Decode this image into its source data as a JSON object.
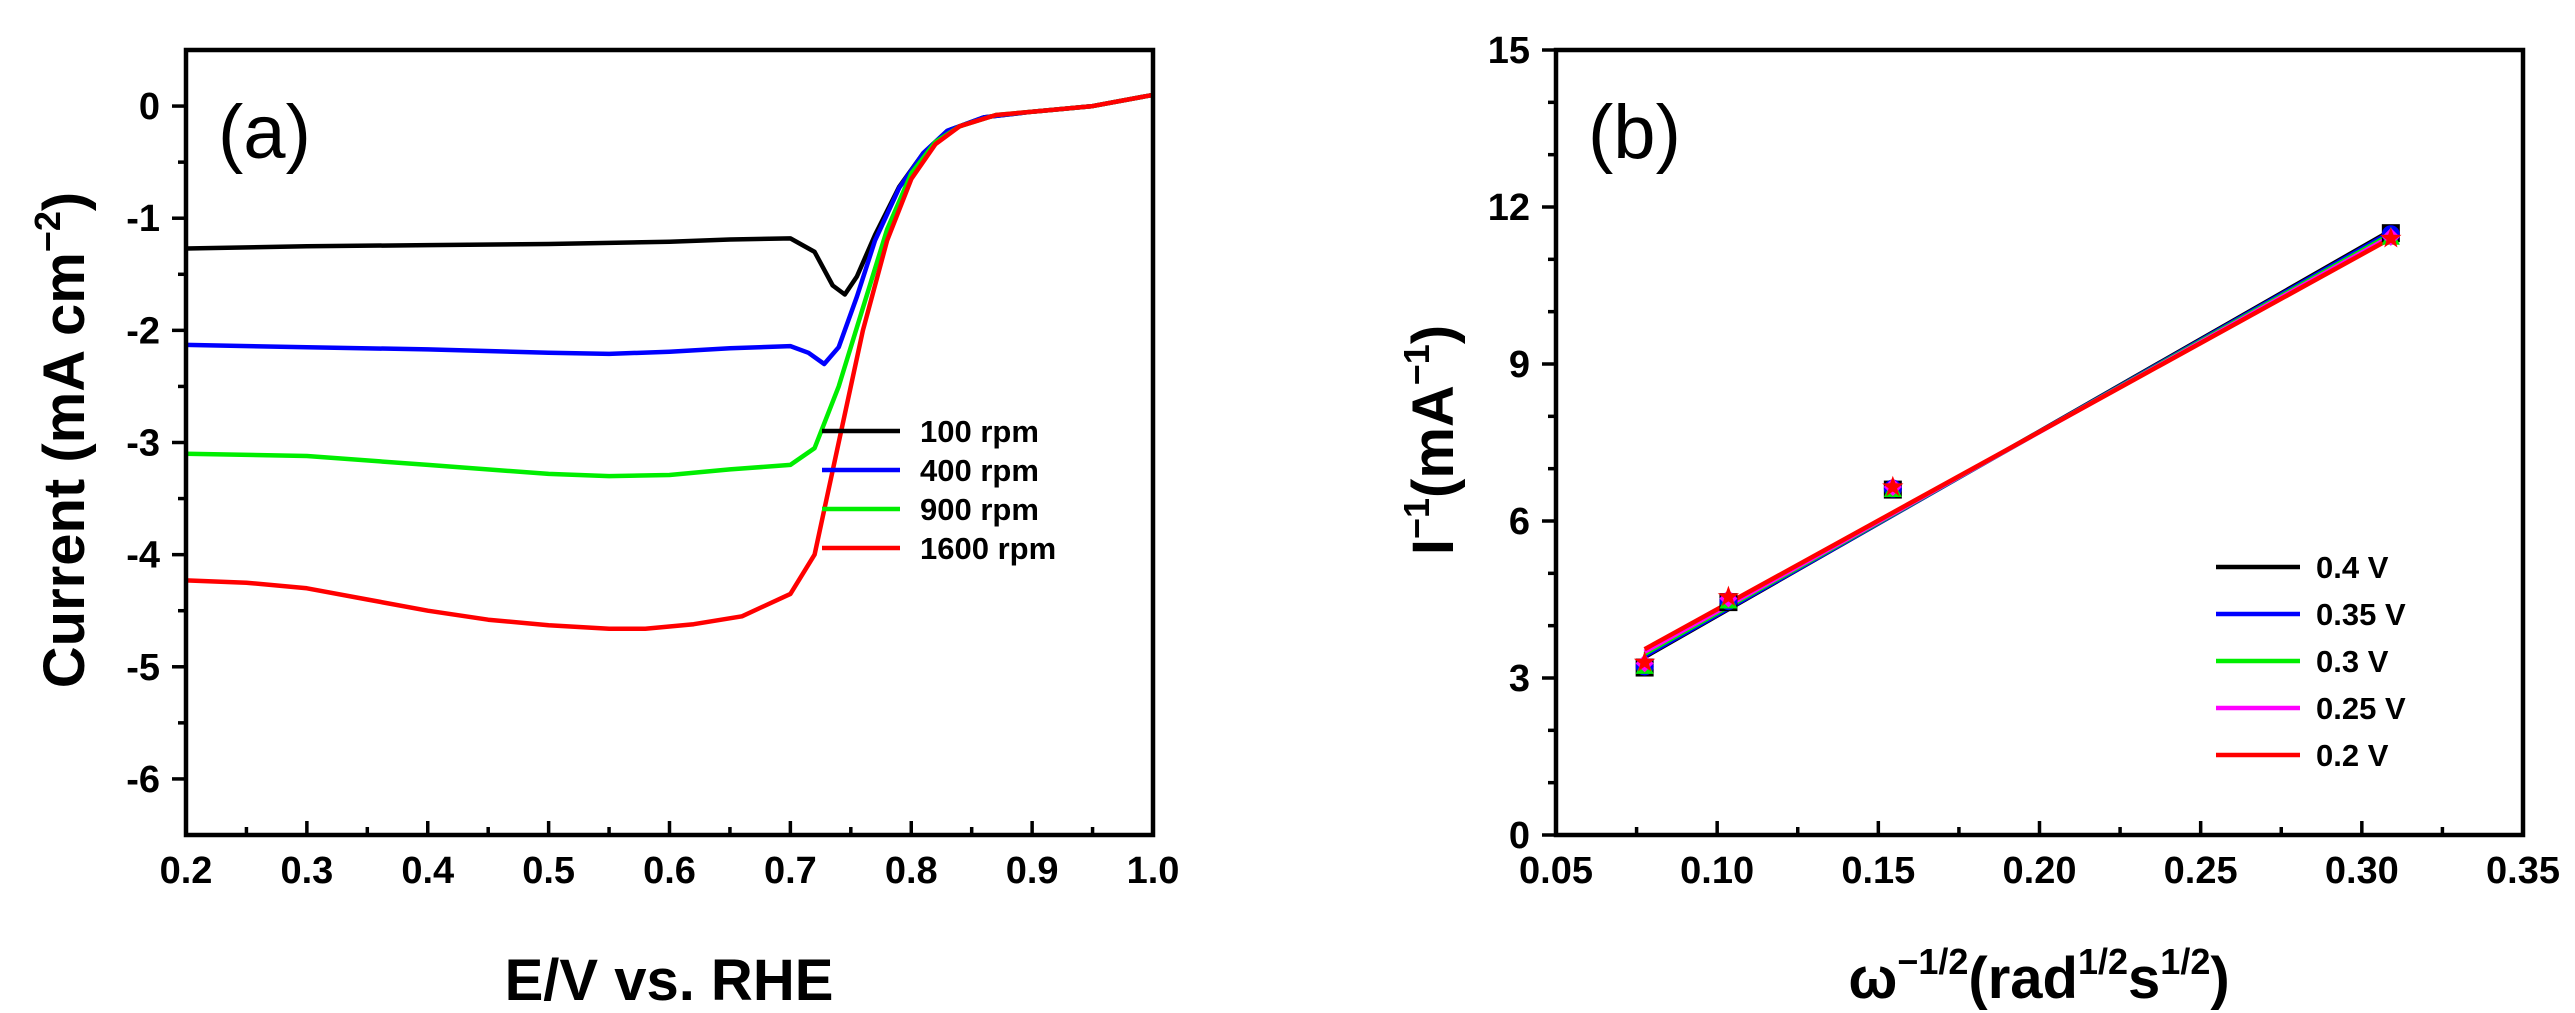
{
  "chart_data": [
    {
      "panel": "(a)",
      "type": "line",
      "xlabel": "E/V vs. RHE",
      "ylabel": "Current (mA cm",
      "ylabel_sup": "−2",
      "ylabel_close": ")",
      "xlim": [
        0.2,
        1.0
      ],
      "ylim": [
        -6.5,
        0.5
      ],
      "xticks": [
        0.2,
        0.3,
        0.4,
        0.5,
        0.6,
        0.7,
        0.8,
        0.9,
        1.0
      ],
      "xtick_labels": [
        "0.2",
        "0.3",
        "0.4",
        "0.5",
        "0.6",
        "0.7",
        "0.8",
        "0.9",
        "1.0"
      ],
      "yticks": [
        0,
        -1,
        -2,
        -3,
        -4,
        -5,
        -6
      ],
      "ytick_labels": [
        "0",
        "-1",
        "-2",
        "-3",
        "-4",
        "-5",
        "-6"
      ],
      "legend_position": "bottom-right",
      "series": [
        {
          "name": "100 rpm",
          "color": "#000000",
          "x": [
            0.2,
            0.3,
            0.4,
            0.5,
            0.6,
            0.65,
            0.7,
            0.72,
            0.735,
            0.745,
            0.755,
            0.77,
            0.79,
            0.81,
            0.83,
            0.86,
            0.9,
            0.95,
            1.0
          ],
          "y": [
            -1.27,
            -1.25,
            -1.24,
            -1.23,
            -1.21,
            -1.19,
            -1.18,
            -1.3,
            -1.6,
            -1.68,
            -1.52,
            -1.15,
            -0.72,
            -0.42,
            -0.22,
            -0.1,
            -0.05,
            0.0,
            0.1
          ]
        },
        {
          "name": "400 rpm",
          "color": "#0000ff",
          "x": [
            0.2,
            0.3,
            0.4,
            0.5,
            0.55,
            0.6,
            0.65,
            0.7,
            0.715,
            0.728,
            0.74,
            0.755,
            0.77,
            0.79,
            0.81,
            0.83,
            0.86,
            0.9,
            0.95,
            1.0
          ],
          "y": [
            -2.13,
            -2.15,
            -2.17,
            -2.2,
            -2.21,
            -2.19,
            -2.16,
            -2.14,
            -2.2,
            -2.3,
            -2.15,
            -1.7,
            -1.2,
            -0.73,
            -0.42,
            -0.22,
            -0.1,
            -0.05,
            0.0,
            0.1
          ]
        },
        {
          "name": "900 rpm",
          "color": "#00ee00",
          "x": [
            0.2,
            0.3,
            0.4,
            0.5,
            0.55,
            0.6,
            0.65,
            0.7,
            0.72,
            0.74,
            0.76,
            0.78,
            0.8,
            0.82,
            0.84,
            0.87,
            0.9,
            0.95,
            1.0
          ],
          "y": [
            -3.1,
            -3.12,
            -3.2,
            -3.28,
            -3.3,
            -3.29,
            -3.24,
            -3.2,
            -3.05,
            -2.5,
            -1.8,
            -1.1,
            -0.6,
            -0.32,
            -0.18,
            -0.08,
            -0.05,
            0.0,
            0.1
          ]
        },
        {
          "name": "1600 rpm",
          "color": "#ff0000",
          "x": [
            0.2,
            0.25,
            0.3,
            0.35,
            0.4,
            0.45,
            0.5,
            0.55,
            0.58,
            0.62,
            0.66,
            0.7,
            0.72,
            0.74,
            0.76,
            0.78,
            0.8,
            0.82,
            0.84,
            0.87,
            0.9,
            0.95,
            1.0
          ],
          "y": [
            -4.23,
            -4.25,
            -4.3,
            -4.4,
            -4.5,
            -4.58,
            -4.63,
            -4.66,
            -4.66,
            -4.62,
            -4.55,
            -4.35,
            -4.0,
            -3.0,
            -2.0,
            -1.2,
            -0.65,
            -0.34,
            -0.18,
            -0.08,
            -0.05,
            0.0,
            0.1
          ]
        }
      ]
    },
    {
      "panel": "(b)",
      "type": "scatter+line",
      "xlabel": "ω",
      "xlabel_sup1": "−1/2",
      "xlabel_mid": "(rad",
      "xlabel_sup2": "1/2",
      "xlabel_s": "s",
      "xlabel_sup3": "1/2",
      "xlabel_close": ")",
      "ylabel": "I",
      "ylabel_sup1": "−1",
      "ylabel_mid": "(mA",
      "ylabel_sup2": "−1",
      "ylabel_close": ")",
      "xlim": [
        0.05,
        0.35
      ],
      "ylim": [
        0,
        15
      ],
      "xticks": [
        0.05,
        0.1,
        0.15,
        0.2,
        0.25,
        0.3,
        0.35
      ],
      "xtick_labels": [
        "0.05",
        "0.10",
        "0.15",
        "0.20",
        "0.25",
        "0.30",
        "0.35"
      ],
      "yticks": [
        0,
        3,
        6,
        9,
        12,
        15
      ],
      "ytick_labels": [
        "0",
        "3",
        "6",
        "9",
        "12",
        "15"
      ],
      "legend_position": "right",
      "x": [
        0.0775,
        0.1035,
        0.1545,
        0.309
      ],
      "series": [
        {
          "name": "0.4 V",
          "color": "#000000",
          "marker": "square",
          "points": [
            3.2,
            4.45,
            6.6,
            11.5
          ],
          "fit": [
            [
              0.0775,
              3.4
            ],
            [
              0.309,
              11.55
            ]
          ]
        },
        {
          "name": "0.35 V",
          "color": "#0000ff",
          "marker": "circle",
          "points": [
            3.22,
            4.47,
            6.62,
            11.48
          ],
          "fit": [
            [
              0.0775,
              3.42
            ],
            [
              0.309,
              11.52
            ]
          ]
        },
        {
          "name": "0.3 V",
          "color": "#00ee00",
          "marker": "triangle",
          "points": [
            3.25,
            4.5,
            6.63,
            11.45
          ],
          "fit": [
            [
              0.0775,
              3.46
            ],
            [
              0.309,
              11.48
            ]
          ]
        },
        {
          "name": "0.25 V",
          "color": "#ff00ff",
          "marker": "diamond",
          "points": [
            3.28,
            4.52,
            6.65,
            11.43
          ],
          "fit": [
            [
              0.0775,
              3.5
            ],
            [
              0.309,
              11.44
            ]
          ]
        },
        {
          "name": "0.2 V",
          "color": "#ff0000",
          "marker": "star",
          "points": [
            3.3,
            4.55,
            6.65,
            11.4
          ],
          "fit": [
            [
              0.0775,
              3.55
            ],
            [
              0.309,
              11.4
            ]
          ]
        }
      ]
    }
  ]
}
